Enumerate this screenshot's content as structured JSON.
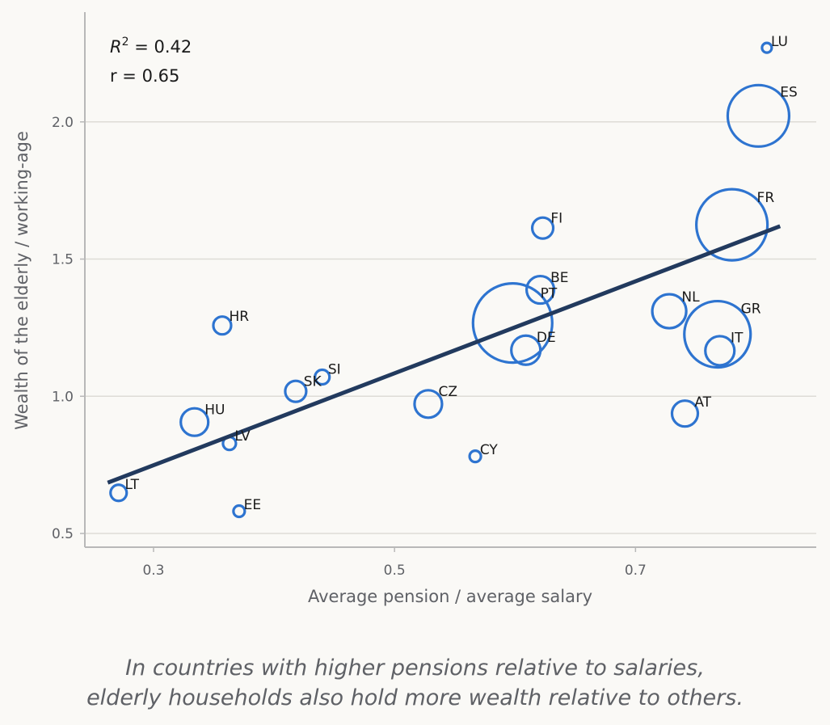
{
  "chart_data": {
    "type": "scatter",
    "xlabel": "Average pension / average salary",
    "ylabel": "Wealth of the elderly / working-age",
    "xlim": [
      0.243,
      0.85
    ],
    "ylim": [
      0.45,
      2.4
    ],
    "xticks": [
      0.3,
      0.5,
      0.7
    ],
    "xtick_labels": [
      "0.3",
      "0.5",
      "0.7"
    ],
    "yticks": [
      0.5,
      1.0,
      1.5,
      2.0
    ],
    "ytick_labels": [
      "0.5",
      "1.0",
      "1.5",
      "2.0"
    ],
    "grid": "horizontal",
    "stats": {
      "r2_value": "0.42",
      "r_text": "r = 0.65"
    },
    "regression_line": {
      "x": [
        0.262,
        0.82
      ],
      "y": [
        0.685,
        1.62
      ]
    },
    "points": [
      {
        "label": "LT",
        "x": 0.271,
        "y": 0.648,
        "size": 10
      },
      {
        "label": "HU",
        "x": 0.334,
        "y": 0.906,
        "size": 17
      },
      {
        "label": "LV",
        "x": 0.363,
        "y": 0.828,
        "size": 8
      },
      {
        "label": "EE",
        "x": 0.371,
        "y": 0.581,
        "size": 7
      },
      {
        "label": "HR",
        "x": 0.357,
        "y": 1.258,
        "size": 11
      },
      {
        "label": "SK",
        "x": 0.418,
        "y": 1.018,
        "size": 13
      },
      {
        "label": "SI",
        "x": 0.44,
        "y": 1.07,
        "size": 9
      },
      {
        "label": "CZ",
        "x": 0.528,
        "y": 0.972,
        "size": 17
      },
      {
        "label": "CY",
        "x": 0.567,
        "y": 0.781,
        "size": 7
      },
      {
        "label": "PT",
        "x": 0.598,
        "y": 1.267,
        "size": 49
      },
      {
        "label": "DE",
        "x": 0.609,
        "y": 1.168,
        "size": 18
      },
      {
        "label": "FI",
        "x": 0.623,
        "y": 1.613,
        "size": 13
      },
      {
        "label": "BE",
        "x": 0.621,
        "y": 1.388,
        "size": 17
      },
      {
        "label": "NL",
        "x": 0.728,
        "y": 1.31,
        "size": 21
      },
      {
        "label": "AT",
        "x": 0.741,
        "y": 0.937,
        "size": 16
      },
      {
        "label": "GR",
        "x": 0.768,
        "y": 1.226,
        "size": 41
      },
      {
        "label": "IT",
        "x": 0.77,
        "y": 1.166,
        "size": 18
      },
      {
        "label": "FR",
        "x": 0.78,
        "y": 1.625,
        "size": 44
      },
      {
        "label": "ES",
        "x": 0.802,
        "y": 2.022,
        "size": 38
      },
      {
        "label": "LU",
        "x": 0.809,
        "y": 2.27,
        "size": 6
      }
    ],
    "colors": {
      "point": "#2e74d0",
      "line": "#223a5e",
      "axis": "#b8b8b8",
      "grid": "#dedcd6",
      "tick_text": "#5f6166",
      "label_text": "#1a1a1a"
    }
  },
  "caption": {
    "line1": "In countries with higher pensions relative to salaries,",
    "line2": "elderly households also hold more wealth relative to others."
  }
}
